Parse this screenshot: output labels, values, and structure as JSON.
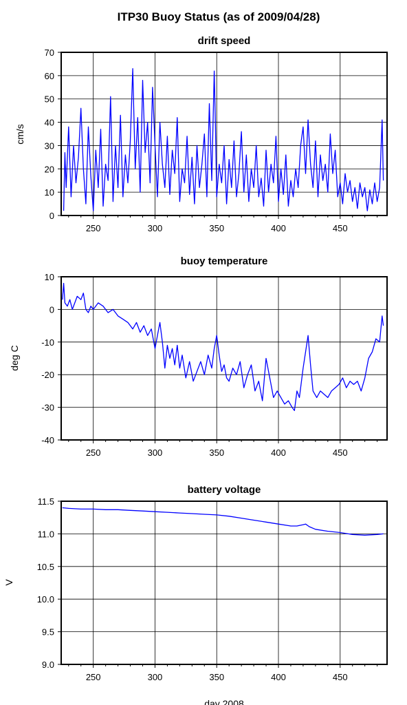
{
  "figure": {
    "title": "ITP30 Buoy Status (as of 2009/04/28)",
    "xlabel": "day 2008"
  },
  "colors": {
    "series": "#0000ff",
    "axes": "#000000",
    "background": "#ffffff"
  },
  "chart_data": [
    {
      "type": "line",
      "title": "drift speed",
      "xlabel": "",
      "ylabel": "cm/s",
      "xlim": [
        224,
        488
      ],
      "ylim": [
        0,
        70
      ],
      "xticks": [
        250,
        300,
        350,
        400,
        450
      ],
      "yticks": [
        0,
        10,
        20,
        30,
        40,
        50,
        60,
        70
      ],
      "xtick_labels": [
        "250",
        "300",
        "350",
        "400",
        "450"
      ],
      "ytick_labels": [
        "0",
        "10",
        "20",
        "30",
        "40",
        "50",
        "60",
        "70"
      ],
      "grid": true,
      "series": [
        {
          "x": [
            226,
            227,
            228,
            230,
            232,
            234,
            236,
            238,
            240,
            242,
            244,
            246,
            248,
            250,
            252,
            254,
            256,
            258,
            260,
            262,
            264,
            266,
            268,
            270,
            272,
            274,
            276,
            278,
            280,
            282,
            284,
            286,
            288,
            290,
            292,
            294,
            296,
            298,
            300,
            302,
            304,
            306,
            308,
            310,
            312,
            314,
            316,
            318,
            320,
            322,
            324,
            326,
            328,
            330,
            332,
            334,
            336,
            338,
            340,
            342,
            344,
            346,
            348,
            349,
            350,
            352,
            354,
            356,
            358,
            360,
            362,
            364,
            366,
            368,
            370,
            372,
            374,
            376,
            378,
            380,
            382,
            384,
            386,
            388,
            390,
            392,
            394,
            396,
            398,
            400,
            402,
            404,
            406,
            408,
            410,
            412,
            414,
            416,
            418,
            420,
            422,
            424,
            426,
            428,
            430,
            432,
            434,
            436,
            438,
            440,
            442,
            444,
            446,
            448,
            450,
            452,
            454,
            456,
            458,
            460,
            462,
            464,
            466,
            468,
            470,
            472,
            474,
            476,
            478,
            480,
            482,
            484,
            485
          ],
          "y": [
            2,
            27,
            12,
            38,
            8,
            30,
            14,
            25,
            46,
            20,
            5,
            38,
            17,
            2,
            28,
            12,
            37,
            4,
            22,
            15,
            51,
            6,
            30,
            12,
            43,
            8,
            26,
            14,
            32,
            63,
            20,
            42,
            10,
            58,
            27,
            40,
            14,
            55,
            30,
            8,
            40,
            22,
            12,
            34,
            9,
            28,
            18,
            42,
            6,
            20,
            14,
            34,
            9,
            25,
            5,
            30,
            12,
            22,
            35,
            8,
            48,
            15,
            62,
            38,
            8,
            22,
            14,
            30,
            5,
            24,
            12,
            32,
            8,
            18,
            36,
            10,
            26,
            6,
            20,
            12,
            30,
            8,
            16,
            4,
            28,
            10,
            22,
            14,
            34,
            6,
            20,
            9,
            26,
            4,
            15,
            8,
            20,
            12,
            30,
            38,
            18,
            41,
            22,
            12,
            32,
            8,
            26,
            15,
            22,
            10,
            35,
            18,
            28,
            8,
            14,
            5,
            18,
            10,
            15,
            6,
            12,
            3,
            14,
            8,
            12,
            2,
            11,
            5,
            14,
            6,
            12,
            41,
            15
          ]
        }
      ]
    },
    {
      "type": "line",
      "title": "buoy temperature",
      "xlabel": "",
      "ylabel": "deg C",
      "xlim": [
        224,
        488
      ],
      "ylim": [
        -40,
        10
      ],
      "xticks": [
        250,
        300,
        350,
        400,
        450
      ],
      "yticks": [
        -40,
        -30,
        -20,
        -10,
        0,
        10
      ],
      "xtick_labels": [
        "250",
        "300",
        "350",
        "400",
        "450"
      ],
      "ytick_labels": [
        "-40",
        "-30",
        "-20",
        "-10",
        "0",
        "10"
      ],
      "grid": true,
      "series": [
        {
          "x": [
            225,
            226,
            227,
            229,
            231,
            233,
            235,
            237,
            240,
            242,
            244,
            246,
            248,
            250,
            254,
            258,
            262,
            266,
            270,
            274,
            278,
            282,
            285,
            288,
            291,
            294,
            297,
            300,
            302,
            304,
            306,
            308,
            310,
            312,
            314,
            316,
            318,
            320,
            322,
            325,
            328,
            331,
            334,
            337,
            340,
            343,
            346,
            348,
            350,
            352,
            354,
            356,
            358,
            360,
            363,
            366,
            369,
            372,
            375,
            378,
            381,
            384,
            387,
            390,
            393,
            396,
            399,
            402,
            405,
            408,
            411,
            413,
            415,
            417,
            420,
            422,
            424,
            426,
            428,
            431,
            434,
            437,
            440,
            443,
            446,
            449,
            452,
            455,
            458,
            461,
            464,
            467,
            470,
            473,
            476,
            479,
            482,
            484,
            485
          ],
          "y": [
            3,
            8,
            2,
            1,
            3,
            0,
            2,
            4,
            3,
            5,
            0,
            -1,
            1,
            0,
            2,
            1,
            -1,
            0,
            -2,
            -3,
            -4,
            -6,
            -4,
            -7,
            -5,
            -8,
            -6,
            -12,
            -8,
            -4,
            -10,
            -18,
            -11,
            -15,
            -12,
            -17,
            -11,
            -18,
            -14,
            -21,
            -16,
            -22,
            -19,
            -16,
            -20,
            -14,
            -18,
            -12,
            -8,
            -14,
            -19,
            -17,
            -21,
            -22,
            -18,
            -20,
            -16,
            -24,
            -20,
            -17,
            -25,
            -22,
            -28,
            -15,
            -21,
            -27,
            -25,
            -27,
            -29,
            -28,
            -30,
            -31,
            -25,
            -27,
            -18,
            -13,
            -8,
            -17,
            -25,
            -27,
            -25,
            -26,
            -27,
            -25,
            -24,
            -23,
            -21,
            -24,
            -22,
            -23,
            -22,
            -25,
            -21,
            -15,
            -13,
            -9,
            -10,
            -2,
            -5
          ]
        }
      ]
    },
    {
      "type": "line",
      "title": "battery voltage",
      "xlabel": "day 2008",
      "ylabel": "V",
      "xlim": [
        224,
        488
      ],
      "ylim": [
        9.0,
        11.5
      ],
      "xticks": [
        250,
        300,
        350,
        400,
        450
      ],
      "yticks": [
        9.0,
        9.5,
        10.0,
        10.5,
        11.0,
        11.5
      ],
      "xtick_labels": [
        "250",
        "300",
        "350",
        "400",
        "450"
      ],
      "ytick_labels": [
        "9.0",
        "9.5",
        "10.0",
        "10.5",
        "11.0",
        "11.5"
      ],
      "grid": true,
      "series": [
        {
          "x": [
            225,
            230,
            240,
            250,
            260,
            270,
            280,
            290,
            300,
            310,
            320,
            330,
            340,
            350,
            360,
            370,
            380,
            390,
            400,
            410,
            415,
            420,
            422,
            425,
            430,
            440,
            450,
            460,
            470,
            480,
            485
          ],
          "y": [
            11.4,
            11.39,
            11.38,
            11.38,
            11.37,
            11.37,
            11.36,
            11.35,
            11.34,
            11.33,
            11.32,
            11.31,
            11.3,
            11.29,
            11.27,
            11.24,
            11.21,
            11.18,
            11.15,
            11.12,
            11.12,
            11.14,
            11.15,
            11.11,
            11.07,
            11.04,
            11.02,
            10.99,
            10.98,
            10.99,
            11.0
          ]
        }
      ]
    }
  ]
}
